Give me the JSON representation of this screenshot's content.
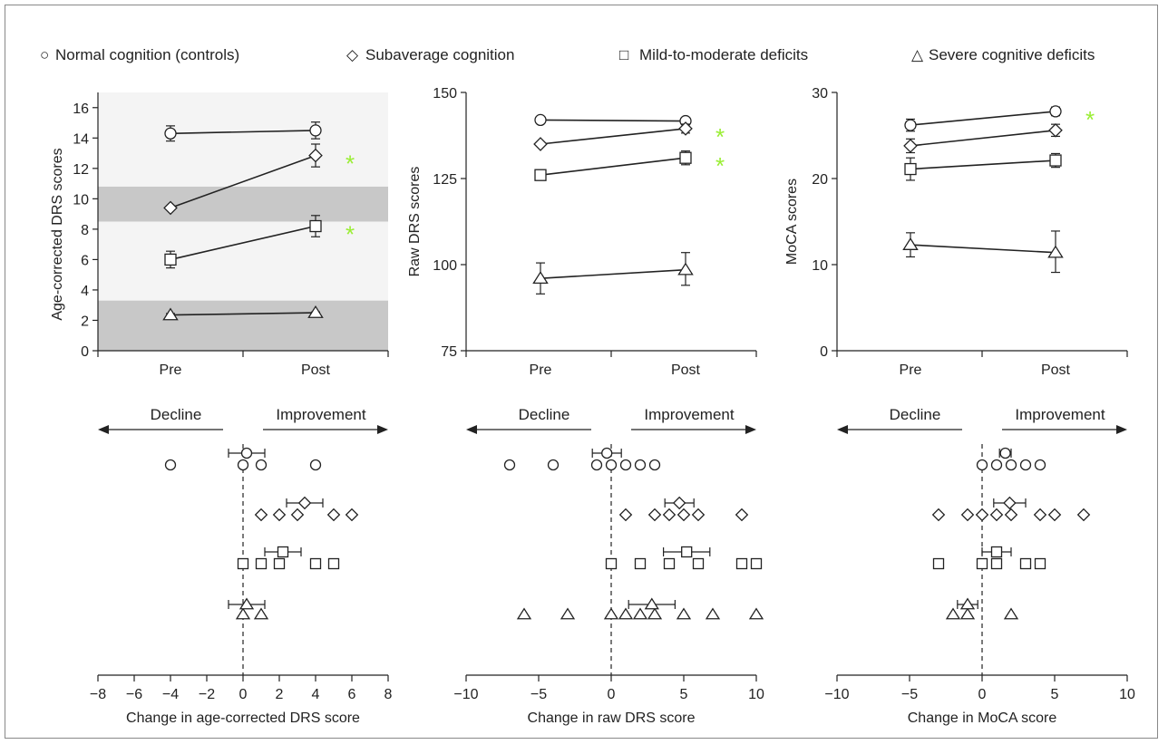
{
  "legend": {
    "normal": {
      "symbol": "○",
      "label": "Normal cognition (controls)"
    },
    "subaverage": {
      "symbol": "◇",
      "label": "Subaverage cognition"
    },
    "mild": {
      "symbol": "□",
      "label": "Mild-to-moderate deficits"
    },
    "severe": {
      "symbol": "△",
      "label": "Severe cognitive deficits"
    }
  },
  "colors": {
    "significance": "#99ee33",
    "band_dark": "#c8c8c8",
    "band_light": "#f4f4f4",
    "ink": "#222222"
  },
  "chart_data": [
    {
      "id": "top_drs_age",
      "type": "line",
      "ylabel": "Age-corrected DRS scores",
      "categories": [
        "Pre",
        "Post"
      ],
      "ylim": [
        0,
        17
      ],
      "yticks": [
        "0",
        "2",
        "4",
        "6",
        "8",
        "10",
        "12",
        "14",
        "16"
      ],
      "shaded_bands": [
        [
          0,
          3.3
        ],
        [
          8.5,
          10.8
        ]
      ],
      "light_band": [
        3.3,
        17
      ],
      "series": [
        {
          "group": "normal",
          "values": [
            14.3,
            14.5
          ],
          "err_up": [
            0.5,
            0.55
          ],
          "err_down": [
            0.5,
            0.55
          ],
          "significant": false
        },
        {
          "group": "subaverage",
          "values": [
            9.4,
            12.85
          ],
          "err_up": [
            0.05,
            0.75
          ],
          "err_down": [
            0.05,
            0.75
          ],
          "significant": true
        },
        {
          "group": "mild",
          "values": [
            6.0,
            8.2
          ],
          "err_up": [
            0.55,
            0.7
          ],
          "err_down": [
            0.55,
            0.7
          ],
          "significant": true
        },
        {
          "group": "severe",
          "values": [
            2.35,
            2.5
          ],
          "err_up": [
            0.1,
            0.05
          ],
          "err_down": [
            0.1,
            0.05
          ],
          "significant": false
        }
      ],
      "significance_mark": "*"
    },
    {
      "id": "top_drs_raw",
      "type": "line",
      "ylabel": "Raw DRS scores",
      "categories": [
        "Pre",
        "Post"
      ],
      "ylim": [
        75,
        150
      ],
      "yticks": [
        "75",
        "100",
        "125",
        "150"
      ],
      "series": [
        {
          "group": "normal",
          "values": [
            142,
            141.7
          ],
          "err_up": [
            0,
            1
          ],
          "err_down": [
            0,
            1
          ],
          "significant": false
        },
        {
          "group": "subaverage",
          "values": [
            135,
            139.5
          ],
          "err_up": [
            0,
            1.3
          ],
          "err_down": [
            0,
            1.3
          ],
          "significant": true
        },
        {
          "group": "mild",
          "values": [
            126,
            131
          ],
          "err_up": [
            0,
            2
          ],
          "err_down": [
            0,
            2
          ],
          "significant": true
        },
        {
          "group": "severe",
          "values": [
            96,
            98.5
          ],
          "err_up": [
            4.5,
            5
          ],
          "err_down": [
            4.5,
            4.5
          ],
          "significant": false
        }
      ],
      "significance_mark": "*"
    },
    {
      "id": "top_moca",
      "type": "line",
      "ylabel": "MoCA scores",
      "categories": [
        "Pre",
        "Post"
      ],
      "ylim": [
        0,
        30
      ],
      "yticks": [
        "0",
        "10",
        "20",
        "30"
      ],
      "series": [
        {
          "group": "normal",
          "values": [
            26.2,
            27.8
          ],
          "err_up": [
            0.7,
            0.5
          ],
          "err_down": [
            0.7,
            0.5
          ],
          "significant": true
        },
        {
          "group": "subaverage",
          "values": [
            23.8,
            25.6
          ],
          "err_up": [
            0.8,
            0.7
          ],
          "err_down": [
            0.8,
            0.7
          ],
          "significant": false
        },
        {
          "group": "mild",
          "values": [
            21.1,
            22.1
          ],
          "err_up": [
            1.3,
            0.8
          ],
          "err_down": [
            1.3,
            0.8
          ],
          "significant": false
        },
        {
          "group": "severe",
          "values": [
            12.3,
            11.4
          ],
          "err_up": [
            1.4,
            2.5
          ],
          "err_down": [
            1.4,
            2.3
          ],
          "significant": false
        }
      ],
      "significance_mark": "*"
    },
    {
      "id": "bottom_drs_age",
      "type": "scatter",
      "xlabel": "Change in age-corrected DRS score",
      "xlim": [
        -8,
        8
      ],
      "xticks": [
        "−8",
        "−6",
        "−4",
        "−2",
        "0",
        "2",
        "4",
        "6",
        "8"
      ],
      "decline_label": "Decline",
      "improvement_label": "Improvement",
      "groups": [
        {
          "group": "normal",
          "points": [
            -4,
            0,
            1,
            4
          ],
          "mean": 0.2,
          "err": 1.0
        },
        {
          "group": "subaverage",
          "points": [
            1,
            2,
            3,
            5,
            6
          ],
          "mean": 3.4,
          "err": 1.0
        },
        {
          "group": "mild",
          "points": [
            0,
            1,
            2,
            4,
            5
          ],
          "mean": 2.2,
          "err": 1.0
        },
        {
          "group": "severe",
          "points": [
            0,
            1
          ],
          "mean": 0.2,
          "err": 1.0
        }
      ]
    },
    {
      "id": "bottom_drs_raw",
      "type": "scatter",
      "xlabel": "Change in raw DRS score",
      "xlim": [
        -10,
        10
      ],
      "xticks": [
        "−10",
        "−5",
        "0",
        "5",
        "10"
      ],
      "decline_label": "Decline",
      "improvement_label": "Improvement",
      "groups": [
        {
          "group": "normal",
          "points": [
            -7,
            -4,
            -1,
            0,
            1,
            2,
            3
          ],
          "mean": -0.3,
          "err": 1.0
        },
        {
          "group": "subaverage",
          "points": [
            1,
            3,
            4,
            5,
            6,
            9
          ],
          "mean": 4.7,
          "err": 1.0
        },
        {
          "group": "mild",
          "points": [
            0,
            2,
            4,
            6,
            9,
            10
          ],
          "mean": 5.2,
          "err": 1.6
        },
        {
          "group": "severe",
          "points": [
            -6,
            -3,
            0,
            1,
            2,
            3,
            5,
            7,
            10
          ],
          "mean": 2.8,
          "err": 1.6
        }
      ]
    },
    {
      "id": "bottom_moca",
      "type": "scatter",
      "xlabel": "Change in MoCA score",
      "xlim": [
        -10,
        10
      ],
      "xticks": [
        "−10",
        "−5",
        "0",
        "5",
        "10"
      ],
      "decline_label": "Decline",
      "improvement_label": "Improvement",
      "groups": [
        {
          "group": "normal",
          "points": [
            0,
            1,
            2,
            3,
            4
          ],
          "mean": 1.6,
          "err": 0.4
        },
        {
          "group": "subaverage",
          "points": [
            -3,
            -1,
            0,
            1,
            2,
            4,
            5,
            7
          ],
          "mean": 1.9,
          "err": 1.1
        },
        {
          "group": "mild",
          "points": [
            -3,
            0,
            1,
            3,
            4
          ],
          "mean": 1.0,
          "err": 1.0
        },
        {
          "group": "severe",
          "points": [
            -2,
            -1,
            2
          ],
          "mean": -1.0,
          "err": 0.7
        }
      ]
    }
  ]
}
